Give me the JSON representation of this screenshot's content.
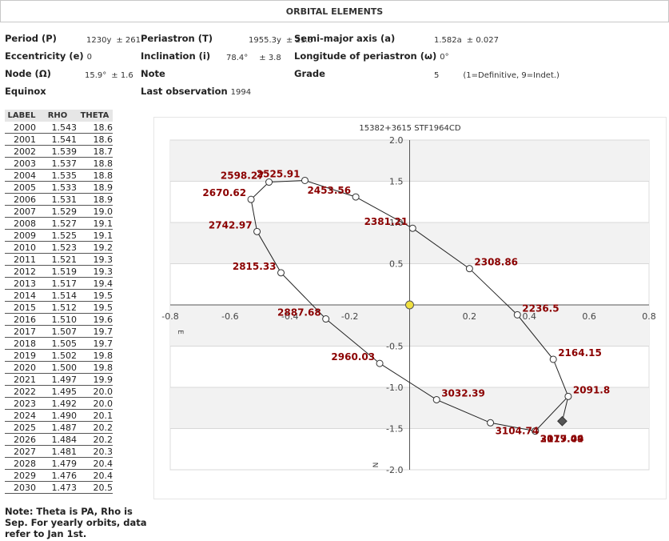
{
  "header": {
    "title": "ORBITAL ELEMENTS"
  },
  "elements": {
    "period": {
      "label": "Period (P)",
      "value": "1230y",
      "error": "± 261"
    },
    "periastron": {
      "label": "Periastron (T)",
      "value": "1955.3y",
      "error": "± 21.3"
    },
    "semimajor": {
      "label": "Semi-major axis (a)",
      "value": "1.582a",
      "error": "± 0.027"
    },
    "eccentricity": {
      "label": "Eccentricity (e)",
      "value": "0"
    },
    "inclination": {
      "label": "Inclination (i)",
      "value": "78.4°",
      "error": "± 3.8"
    },
    "longitude": {
      "label": "Longitude of periastron (ω)",
      "value": "0°"
    },
    "node": {
      "label": "Node (Ω)",
      "value": "15.9°",
      "error": "± 1.6"
    },
    "note": {
      "label": "Note"
    },
    "grade": {
      "label": "Grade",
      "value": "5",
      "scale": "(1=Definitive, 9=Indet.)"
    },
    "equinox": {
      "label": "Equinox"
    },
    "last_obs": {
      "label": "Last observation",
      "value": "1994"
    }
  },
  "table": {
    "headers": [
      "LABEL",
      "RHO",
      "THETA"
    ],
    "rows": [
      [
        "2000",
        "1.543",
        "18.6"
      ],
      [
        "2001",
        "1.541",
        "18.6"
      ],
      [
        "2002",
        "1.539",
        "18.7"
      ],
      [
        "2003",
        "1.537",
        "18.8"
      ],
      [
        "2004",
        "1.535",
        "18.8"
      ],
      [
        "2005",
        "1.533",
        "18.9"
      ],
      [
        "2006",
        "1.531",
        "18.9"
      ],
      [
        "2007",
        "1.529",
        "19.0"
      ],
      [
        "2008",
        "1.527",
        "19.1"
      ],
      [
        "2009",
        "1.525",
        "19.1"
      ],
      [
        "2010",
        "1.523",
        "19.2"
      ],
      [
        "2011",
        "1.521",
        "19.3"
      ],
      [
        "2012",
        "1.519",
        "19.3"
      ],
      [
        "2013",
        "1.517",
        "19.4"
      ],
      [
        "2014",
        "1.514",
        "19.5"
      ],
      [
        "2015",
        "1.512",
        "19.5"
      ],
      [
        "2016",
        "1.510",
        "19.6"
      ],
      [
        "2017",
        "1.507",
        "19.7"
      ],
      [
        "2018",
        "1.505",
        "19.7"
      ],
      [
        "2019",
        "1.502",
        "19.8"
      ],
      [
        "2020",
        "1.500",
        "19.8"
      ],
      [
        "2021",
        "1.497",
        "19.9"
      ],
      [
        "2022",
        "1.495",
        "20.0"
      ],
      [
        "2023",
        "1.492",
        "20.0"
      ],
      [
        "2024",
        "1.490",
        "20.1"
      ],
      [
        "2025",
        "1.487",
        "20.2"
      ],
      [
        "2026",
        "1.484",
        "20.2"
      ],
      [
        "2027",
        "1.481",
        "20.3"
      ],
      [
        "2028",
        "1.479",
        "20.4"
      ],
      [
        "2029",
        "1.476",
        "20.4"
      ],
      [
        "2030",
        "1.473",
        "20.5"
      ]
    ]
  },
  "footnote": "Note: Theta is PA, Rho is Sep. For yearly orbits, data refer to Jan 1st.",
  "chart_data": {
    "type": "scatter",
    "title": "15382+3615 STF1964CD",
    "xlabel": "E",
    "ylabel": "N",
    "xlim": [
      -0.8,
      0.8
    ],
    "ylim": [
      -2.0,
      2.0
    ],
    "xticks": [
      "-0.8",
      "-0.6",
      "-0.4",
      "-0.2",
      "0.2",
      "0.4",
      "0.6",
      "0.8"
    ],
    "yticks": [
      "2.0",
      "1.5",
      "1.0",
      "0.5",
      "-0.5",
      "-1.0",
      "-1.5",
      "-2.0"
    ],
    "primary": {
      "x": 0,
      "y": 0,
      "color": "#f0e040"
    },
    "orbit_line_color": "#222222",
    "label_color": "#8b0000",
    "points": [
      {
        "label": "2019.44",
        "x": 0.42,
        "y": -1.53
      },
      {
        "label": "2091.8",
        "x": 0.53,
        "y": -1.11
      },
      {
        "label": "2164.15",
        "x": 0.48,
        "y": -0.66
      },
      {
        "label": "2236.5",
        "x": 0.36,
        "y": -0.12
      },
      {
        "label": "2308.86",
        "x": 0.2,
        "y": 0.44
      },
      {
        "label": "2381.21",
        "x": 0.01,
        "y": 0.93
      },
      {
        "label": "2453.56",
        "x": -0.18,
        "y": 1.31
      },
      {
        "label": "2525.91",
        "x": -0.35,
        "y": 1.51
      },
      {
        "label": "2598.27",
        "x": -0.47,
        "y": 1.49
      },
      {
        "label": "2670.62",
        "x": -0.53,
        "y": 1.28
      },
      {
        "label": "2742.97",
        "x": -0.51,
        "y": 0.89
      },
      {
        "label": "2815.33",
        "x": -0.43,
        "y": 0.39
      },
      {
        "label": "2887.68",
        "x": -0.28,
        "y": -0.17
      },
      {
        "label": "2960.03",
        "x": -0.1,
        "y": -0.71
      },
      {
        "label": "3032.39",
        "x": 0.09,
        "y": -1.15
      },
      {
        "label": "3104.74",
        "x": 0.27,
        "y": -1.43
      },
      {
        "label": "3177.09",
        "x": 0.42,
        "y": -1.53
      }
    ],
    "current_position": {
      "x": 0.51,
      "y": -1.41
    }
  }
}
